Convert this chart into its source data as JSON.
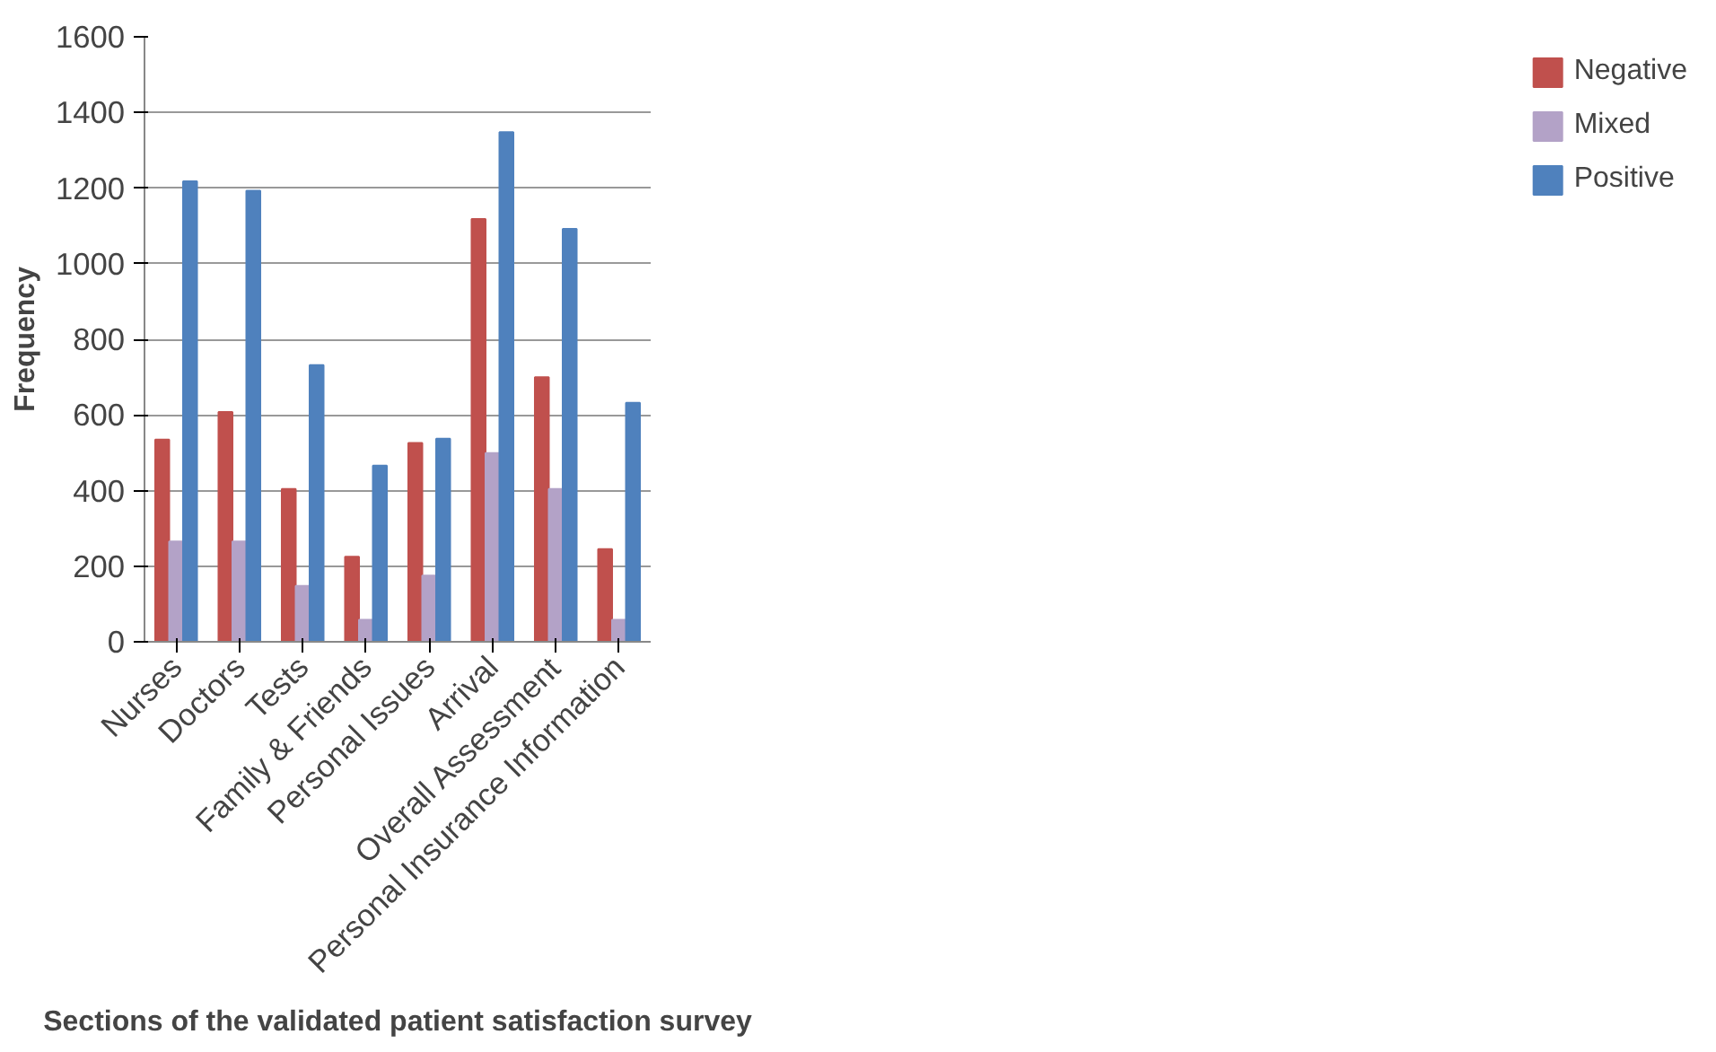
{
  "chart_data": {
    "type": "bar",
    "xlabel": "Sections of the validated patient satisfaction survey",
    "ylabel": "Frequency",
    "categories": [
      "Nurses",
      "Doctors",
      "Tests",
      "Family & Friends",
      "Personal Issues",
      "Arrival",
      "Overall Assessment",
      "Personal Insurance Information"
    ],
    "series": [
      {
        "name": "Negative",
        "color": "#c0504d",
        "values": [
          535,
          608,
          404,
          225,
          526,
          1118,
          700,
          245
        ]
      },
      {
        "name": "Mixed",
        "color": "#b3a2c7",
        "values": [
          265,
          265,
          148,
          58,
          175,
          499,
          404,
          58
        ]
      },
      {
        "name": "Positive",
        "color": "#4f81bd",
        "values": [
          1218,
          1193,
          732,
          466,
          537,
          1348,
          1092,
          632
        ]
      }
    ],
    "ylim": [
      0,
      1600
    ],
    "yticks": [
      0,
      200,
      400,
      600,
      800,
      1000,
      1200,
      1400,
      1600
    ],
    "grid": "y",
    "legend": "right"
  }
}
